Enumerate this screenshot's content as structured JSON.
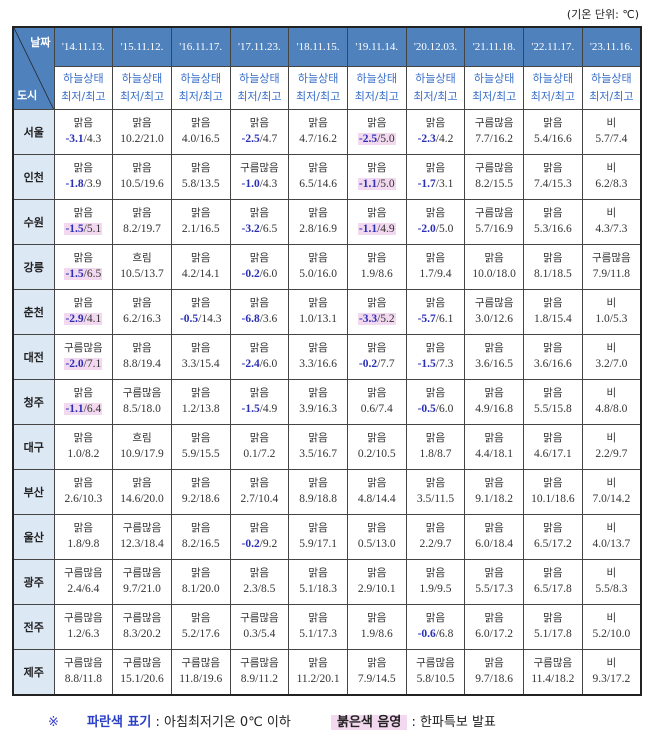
{
  "unit_note": "(기온 단위: ℃)",
  "header": {
    "date_label": "날짜",
    "city_label": "도시",
    "sub_line1": "하늘상태",
    "sub_line2": "최저/최고",
    "dates": [
      "'14.11.13.",
      "'15.11.12.",
      "'16.11.17.",
      "'17.11.23.",
      "'18.11.15.",
      "'19.11.14.",
      "'20.12.03.",
      "'21.11.18.",
      "'22.11.17.",
      "'23.11.16."
    ]
  },
  "colors": {
    "header_bg": "#4f81bd",
    "city_bg": "#dde8f5",
    "below_zero_text": "#2a2fb8",
    "cold_wave_shade": "#f3d9ef"
  },
  "rows": [
    {
      "city": "서울",
      "cells": [
        [
          "맑음",
          "-3.1",
          "4.3",
          0
        ],
        [
          "맑음",
          "10.2",
          "21.0",
          0
        ],
        [
          "맑음",
          "4.0",
          "16.5",
          0
        ],
        [
          "맑음",
          "-2.5",
          "4.7",
          0
        ],
        [
          "맑음",
          "4.7",
          "16.2",
          0
        ],
        [
          "맑음",
          "-2.5",
          "5.0",
          1
        ],
        [
          "맑음",
          "-2.3",
          "4.2",
          0
        ],
        [
          "구름많음",
          "7.7",
          "16.2",
          0
        ],
        [
          "맑음",
          "5.4",
          "16.6",
          0
        ],
        [
          "비",
          "5.7",
          "7.4",
          0
        ]
      ]
    },
    {
      "city": "인천",
      "cells": [
        [
          "맑음",
          "-1.8",
          "3.9",
          0
        ],
        [
          "맑음",
          "10.5",
          "19.6",
          0
        ],
        [
          "맑음",
          "5.8",
          "13.5",
          0
        ],
        [
          "구름많음",
          "-1.0",
          "4.3",
          0
        ],
        [
          "맑음",
          "6.5",
          "14.6",
          0
        ],
        [
          "맑음",
          "-1.1",
          "5.0",
          1
        ],
        [
          "맑음",
          "-1.7",
          "3.1",
          0
        ],
        [
          "구름많음",
          "8.2",
          "15.5",
          0
        ],
        [
          "맑음",
          "7.4",
          "15.3",
          0
        ],
        [
          "비",
          "6.2",
          "8.3",
          0
        ]
      ]
    },
    {
      "city": "수원",
      "cells": [
        [
          "맑음",
          "-1.5",
          "5.1",
          1
        ],
        [
          "맑음",
          "8.2",
          "19.7",
          0
        ],
        [
          "맑음",
          "2.1",
          "16.5",
          0
        ],
        [
          "맑음",
          "-3.2",
          "6.5",
          0
        ],
        [
          "맑음",
          "2.8",
          "16.9",
          0
        ],
        [
          "맑음",
          "-1.1",
          "4.9",
          1
        ],
        [
          "맑음",
          "-2.0",
          "5.0",
          0
        ],
        [
          "구름많음",
          "5.7",
          "16.9",
          0
        ],
        [
          "맑음",
          "5.3",
          "16.6",
          0
        ],
        [
          "비",
          "4.3",
          "7.3",
          0
        ]
      ]
    },
    {
      "city": "강릉",
      "cells": [
        [
          "맑음",
          "-1.5",
          "6.5",
          1
        ],
        [
          "흐림",
          "10.5",
          "13.7",
          0
        ],
        [
          "맑음",
          "4.2",
          "14.1",
          0
        ],
        [
          "맑음",
          "-0.2",
          "6.0",
          0
        ],
        [
          "맑음",
          "5.0",
          "16.0",
          0
        ],
        [
          "맑음",
          "1.9",
          "8.6",
          0
        ],
        [
          "맑음",
          "1.7",
          "9.4",
          0
        ],
        [
          "맑음",
          "10.0",
          "18.0",
          0
        ],
        [
          "맑음",
          "8.1",
          "18.5",
          0
        ],
        [
          "구름많음",
          "7.9",
          "11.8",
          0
        ]
      ]
    },
    {
      "city": "춘천",
      "cells": [
        [
          "맑음",
          "-2.9",
          "4.1",
          1
        ],
        [
          "맑음",
          "6.2",
          "16.3",
          0
        ],
        [
          "맑음",
          "-0.5",
          "14.3",
          0
        ],
        [
          "맑음",
          "-6.8",
          "3.6",
          0
        ],
        [
          "맑음",
          "1.0",
          "13.1",
          0
        ],
        [
          "맑음",
          "-3.3",
          "5.2",
          1
        ],
        [
          "맑음",
          "-5.7",
          "6.1",
          0
        ],
        [
          "구름많음",
          "3.0",
          "12.6",
          0
        ],
        [
          "맑음",
          "1.8",
          "15.4",
          0
        ],
        [
          "비",
          "1.0",
          "5.3",
          0
        ]
      ]
    },
    {
      "city": "대전",
      "cells": [
        [
          "구름많음",
          "-2.0",
          "7.1",
          1
        ],
        [
          "맑음",
          "8.8",
          "19.4",
          0
        ],
        [
          "맑음",
          "3.3",
          "15.4",
          0
        ],
        [
          "맑음",
          "-2.4",
          "6.0",
          0
        ],
        [
          "맑음",
          "3.3",
          "16.6",
          0
        ],
        [
          "맑음",
          "-0.2",
          "7.7",
          0
        ],
        [
          "맑음",
          "-1.5",
          "7.3",
          0
        ],
        [
          "맑음",
          "3.6",
          "16.5",
          0
        ],
        [
          "맑음",
          "3.6",
          "16.6",
          0
        ],
        [
          "비",
          "3.2",
          "7.0",
          0
        ]
      ]
    },
    {
      "city": "청주",
      "cells": [
        [
          "맑음",
          "-1.1",
          "6.4",
          1
        ],
        [
          "구름많음",
          "8.5",
          "18.0",
          0
        ],
        [
          "맑음",
          "1.2",
          "13.8",
          0
        ],
        [
          "맑음",
          "-1.5",
          "4.9",
          0
        ],
        [
          "맑음",
          "3.9",
          "16.3",
          0
        ],
        [
          "맑음",
          "0.6",
          "7.4",
          0
        ],
        [
          "맑음",
          "-0.5",
          "6.0",
          0
        ],
        [
          "맑음",
          "4.9",
          "16.8",
          0
        ],
        [
          "맑음",
          "5.5",
          "15.8",
          0
        ],
        [
          "비",
          "4.8",
          "8.0",
          0
        ]
      ]
    },
    {
      "city": "대구",
      "cells": [
        [
          "맑음",
          "1.0",
          "8.2",
          0
        ],
        [
          "흐림",
          "10.9",
          "17.9",
          0
        ],
        [
          "맑음",
          "5.9",
          "15.5",
          0
        ],
        [
          "맑음",
          "0.1",
          "7.2",
          0
        ],
        [
          "맑음",
          "3.5",
          "16.7",
          0
        ],
        [
          "맑음",
          "0.2",
          "10.5",
          0
        ],
        [
          "맑음",
          "1.8",
          "8.7",
          0
        ],
        [
          "맑음",
          "4.4",
          "18.1",
          0
        ],
        [
          "맑음",
          "4.6",
          "17.1",
          0
        ],
        [
          "비",
          "2.2",
          "9.7",
          0
        ]
      ]
    },
    {
      "city": "부산",
      "cells": [
        [
          "맑음",
          "2.6",
          "10.3",
          0
        ],
        [
          "맑음",
          "14.6",
          "20.0",
          0
        ],
        [
          "맑음",
          "9.2",
          "18.6",
          0
        ],
        [
          "맑음",
          "2.7",
          "10.4",
          0
        ],
        [
          "맑음",
          "8.9",
          "18.8",
          0
        ],
        [
          "맑음",
          "4.8",
          "14.4",
          0
        ],
        [
          "맑음",
          "3.5",
          "11.5",
          0
        ],
        [
          "맑음",
          "9.1",
          "18.2",
          0
        ],
        [
          "맑음",
          "10.1",
          "18.6",
          0
        ],
        [
          "비",
          "7.0",
          "14.2",
          0
        ]
      ]
    },
    {
      "city": "울산",
      "cells": [
        [
          "맑음",
          "1.8",
          "9.8",
          0
        ],
        [
          "구름많음",
          "12.3",
          "18.4",
          0
        ],
        [
          "맑음",
          "8.2",
          "16.5",
          0
        ],
        [
          "맑음",
          "-0.2",
          "9.2",
          0
        ],
        [
          "맑음",
          "5.9",
          "17.1",
          0
        ],
        [
          "맑음",
          "0.5",
          "13.0",
          0
        ],
        [
          "맑음",
          "2.2",
          "9.7",
          0
        ],
        [
          "맑음",
          "6.0",
          "18.4",
          0
        ],
        [
          "맑음",
          "6.5",
          "17.2",
          0
        ],
        [
          "비",
          "4.0",
          "13.7",
          0
        ]
      ]
    },
    {
      "city": "광주",
      "cells": [
        [
          "구름많음",
          "2.4",
          "6.4",
          0
        ],
        [
          "구름많음",
          "9.7",
          "21.0",
          0
        ],
        [
          "맑음",
          "8.1",
          "20.0",
          0
        ],
        [
          "맑음",
          "2.3",
          "8.5",
          0
        ],
        [
          "맑음",
          "5.1",
          "18.3",
          0
        ],
        [
          "맑음",
          "2.9",
          "10.1",
          0
        ],
        [
          "맑음",
          "1.9",
          "9.5",
          0
        ],
        [
          "맑음",
          "5.5",
          "17.3",
          0
        ],
        [
          "맑음",
          "6.5",
          "17.8",
          0
        ],
        [
          "비",
          "5.5",
          "8.3",
          0
        ]
      ]
    },
    {
      "city": "전주",
      "cells": [
        [
          "구름많음",
          "1.2",
          "6.3",
          0
        ],
        [
          "구름많음",
          "8.3",
          "20.2",
          0
        ],
        [
          "맑음",
          "5.2",
          "17.6",
          0
        ],
        [
          "구름많음",
          "0.3",
          "5.4",
          0
        ],
        [
          "맑음",
          "5.1",
          "17.3",
          0
        ],
        [
          "맑음",
          "1.9",
          "8.6",
          0
        ],
        [
          "맑음",
          "-0.6",
          "6.8",
          0
        ],
        [
          "맑음",
          "6.0",
          "17.2",
          0
        ],
        [
          "맑음",
          "5.1",
          "17.8",
          0
        ],
        [
          "비",
          "5.2",
          "10.0",
          0
        ]
      ]
    },
    {
      "city": "제주",
      "cells": [
        [
          "구름많음",
          "8.8",
          "11.8",
          0
        ],
        [
          "구름많음",
          "15.1",
          "20.6",
          0
        ],
        [
          "구름많음",
          "11.8",
          "19.6",
          0
        ],
        [
          "구름많음",
          "8.9",
          "11.2",
          0
        ],
        [
          "맑음",
          "11.2",
          "20.1",
          0
        ],
        [
          "맑음",
          "7.9",
          "14.5",
          0
        ],
        [
          "구름많음",
          "5.8",
          "10.5",
          0
        ],
        [
          "맑음",
          "9.7",
          "18.6",
          0
        ],
        [
          "구름많음",
          "11.4",
          "18.2",
          0
        ],
        [
          "비",
          "9.3",
          "17.2",
          0
        ]
      ]
    }
  ],
  "legend": {
    "mark": "※",
    "blue_label": "파란색 표기",
    "blue_desc": ": 아침최저기온 0℃ 이하",
    "pink_label": "붉은색 음영",
    "pink_desc": ": 한파특보 발표"
  }
}
